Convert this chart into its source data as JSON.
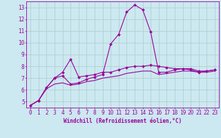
{
  "xlabel": "Windchill (Refroidissement éolien,°C)",
  "ylabel": "",
  "background_color": "#cce8f0",
  "grid_color": "#aacccc",
  "line_color": "#990099",
  "x_values": [
    0,
    1,
    2,
    3,
    4,
    5,
    6,
    7,
    8,
    9,
    10,
    11,
    12,
    13,
    14,
    15,
    16,
    17,
    18,
    19,
    20,
    21,
    22,
    23
  ],
  "series1": [
    4.7,
    5.1,
    6.2,
    7.0,
    7.5,
    8.6,
    7.1,
    7.2,
    7.3,
    7.5,
    7.5,
    7.7,
    7.9,
    8.0,
    8.0,
    8.1,
    8.0,
    7.9,
    7.8,
    7.8,
    7.7,
    7.5,
    7.6,
    7.7
  ],
  "series2": [
    4.7,
    5.1,
    6.2,
    7.0,
    7.2,
    6.5,
    6.6,
    6.9,
    7.1,
    7.3,
    9.9,
    10.7,
    12.6,
    13.2,
    12.8,
    10.9,
    7.5,
    7.5,
    7.7,
    7.8,
    7.8,
    7.6,
    7.6,
    7.7
  ],
  "series3": [
    4.7,
    5.1,
    6.1,
    6.5,
    6.6,
    6.4,
    6.5,
    6.7,
    6.8,
    7.0,
    7.1,
    7.2,
    7.4,
    7.5,
    7.6,
    7.6,
    7.3,
    7.4,
    7.5,
    7.6,
    7.6,
    7.5,
    7.5,
    7.6
  ],
  "ylim": [
    4.5,
    13.5
  ],
  "yticks": [
    5,
    6,
    7,
    8,
    9,
    10,
    11,
    12,
    13
  ],
  "xlim": [
    -0.5,
    23.5
  ],
  "xticks": [
    0,
    1,
    2,
    3,
    4,
    5,
    6,
    7,
    8,
    9,
    10,
    11,
    12,
    13,
    14,
    15,
    16,
    17,
    18,
    19,
    20,
    21,
    22,
    23
  ],
  "marker": "D",
  "markersize": 2.0,
  "linewidth": 0.8,
  "tick_fontsize": 5.5,
  "xlabel_fontsize": 5.5
}
